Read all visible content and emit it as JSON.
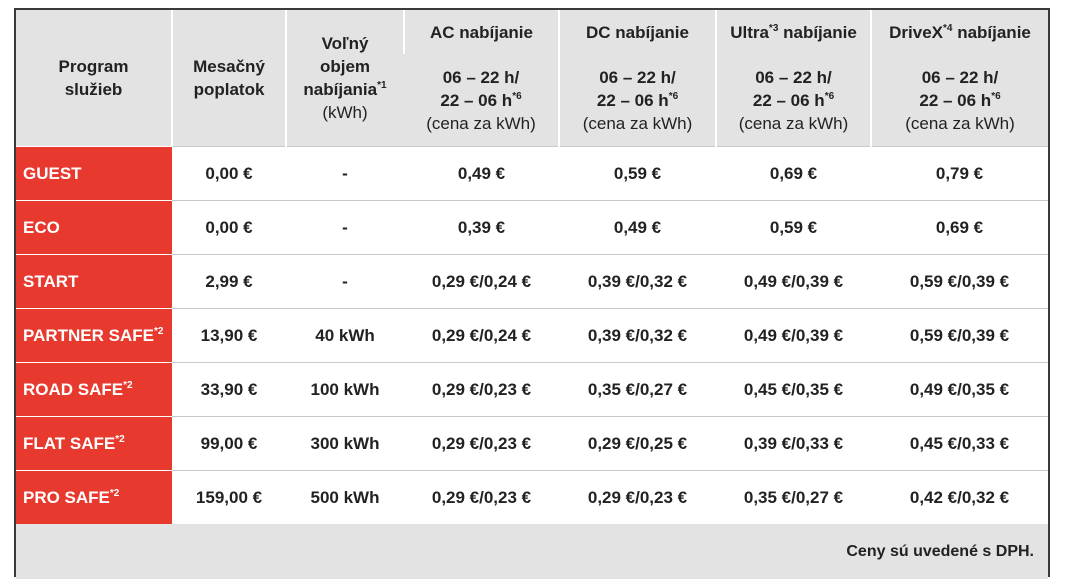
{
  "header": {
    "program": [
      "Program",
      "služieb"
    ],
    "fee": [
      "Mesačný",
      "poplatok"
    ],
    "volume": {
      "lines": [
        "Voľný",
        "objem",
        "nabíjania"
      ],
      "note": "*1",
      "unit": "(kWh)"
    },
    "groups": [
      {
        "name": "AC nabíjanie"
      },
      {
        "name": "DC nabíjanie"
      },
      {
        "name": "Ultra",
        "note": "*3",
        "suffix": "nabíjanie"
      },
      {
        "name": "DriveX",
        "note": "*4",
        "suffix": "nabíjanie"
      }
    ],
    "time": {
      "line1": "06 – 22 h/",
      "line2": "22 – 06 h",
      "note": "*6",
      "unit": "(cena za kWh)"
    }
  },
  "rows": [
    {
      "name": "GUEST",
      "fee": "0,00 €",
      "volume": "-",
      "prices": [
        "0,49 €",
        "0,59 €",
        "0,69 €",
        "0,79 €"
      ]
    },
    {
      "name": "ECO",
      "fee": "0,00 €",
      "volume": "-",
      "prices": [
        "0,39 €",
        "0,49 €",
        "0,59 €",
        "0,69 €"
      ]
    },
    {
      "name": "START",
      "fee": "2,99 €",
      "volume": "-",
      "prices": [
        "0,29 €/0,24 €",
        "0,39 €/0,32 €",
        "0,49 €/0,39 €",
        "0,59 €/0,39 €"
      ]
    },
    {
      "name": "PARTNER SAFE",
      "note": "*2",
      "fee": "13,90 €",
      "volume": "40 kWh",
      "prices": [
        "0,29 €/0,24 €",
        "0,39 €/0,32 €",
        "0,49 €/0,39 €",
        "0,59 €/0,39 €"
      ]
    },
    {
      "name": "ROAD SAFE",
      "note": "*2",
      "fee": "33,90 €",
      "volume": "100 kWh",
      "prices": [
        "0,29 €/0,23 €",
        "0,35 €/0,27 €",
        "0,45 €/0,35 €",
        "0,49 €/0,35 €"
      ]
    },
    {
      "name": "FLAT SAFE",
      "note": "*2",
      "fee": "99,00 €",
      "volume": "300 kWh",
      "prices": [
        "0,29 €/0,23 €",
        "0,29 €/0,25 €",
        "0,39 €/0,33 €",
        "0,45 €/0,33 €"
      ]
    },
    {
      "name": "PRO SAFE",
      "note": "*2",
      "fee": "159,00 €",
      "volume": "500 kWh",
      "prices": [
        "0,29 €/0,23 €",
        "0,29 €/0,23 €",
        "0,35 €/0,27 €",
        "0,42 €/0,32 €"
      ]
    }
  ],
  "footer": "Ceny sú uvedené s DPH."
}
